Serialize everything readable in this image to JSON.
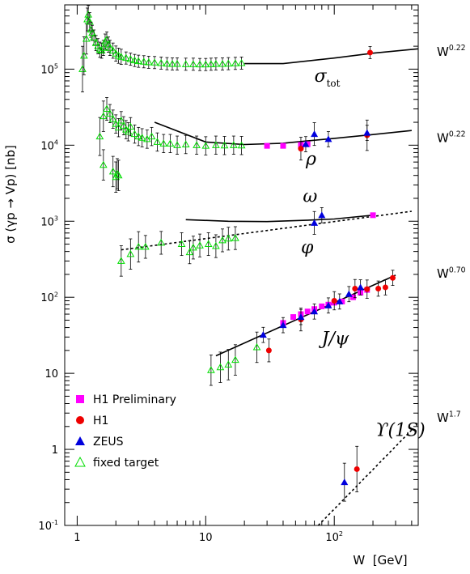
{
  "chart_data": {
    "type": "scatter",
    "title": "",
    "ylabel": "σ (γp → Vp) [nb]",
    "xlabel": "W  [GeV]",
    "xscale": "log",
    "yscale": "log",
    "xlim": [
      0.8,
      450
    ],
    "ylim": [
      0.1,
      700000
    ],
    "grid": false,
    "legend_position": "bottom-left",
    "xticks": [
      {
        "value": 1,
        "label": "1"
      },
      {
        "value": 10,
        "label": "10"
      },
      {
        "value": 100,
        "label": "10",
        "exp": "2"
      }
    ],
    "yticks": [
      {
        "value": 0.1,
        "label": "10",
        "exp": "-1"
      },
      {
        "value": 1,
        "label": "1"
      },
      {
        "value": 10,
        "label": "10"
      },
      {
        "value": 100,
        "label": "10",
        "exp": "2"
      },
      {
        "value": 1000,
        "label": "10",
        "exp": "3"
      },
      {
        "value": 10000,
        "label": "10",
        "exp": "4"
      },
      {
        "value": 100000,
        "label": "10",
        "exp": "5"
      }
    ],
    "legend": [
      {
        "label": "H1 Preliminary",
        "marker": "square",
        "color": "#ff00ff"
      },
      {
        "label": "H1",
        "marker": "circle",
        "color": "#ee0000"
      },
      {
        "label": "ZEUS",
        "marker": "triangle",
        "color": "#0000dd"
      },
      {
        "label": "fixed target",
        "marker": "open-triangle",
        "color": "#00dd00"
      }
    ],
    "curve_labels": [
      {
        "text": "σ",
        "sub": "tot",
        "x": 70,
        "y": 68000
      },
      {
        "text": "ρ",
        "x": 60,
        "y": 5500
      },
      {
        "text": "ω",
        "x": 57,
        "y": 1800
      },
      {
        "text": "φ",
        "x": 55,
        "y": 380
      },
      {
        "text": "J/ψ",
        "x": 80,
        "y": 24
      },
      {
        "text": "ϒ(1S)",
        "x": 210,
        "y": 1.5
      }
    ],
    "power_labels": [
      {
        "text": "W",
        "exp": "0.22",
        "y": 150000
      },
      {
        "text": "W",
        "exp": "0.22",
        "y": 11000
      },
      {
        "text": "W",
        "exp": "0.70",
        "y": 180
      },
      {
        "text": "W",
        "exp": "1.7",
        "y": 2.3
      }
    ],
    "fits": [
      {
        "name": "sigma_tot",
        "style": "solid",
        "points": [
          [
            20,
            118000
          ],
          [
            40,
            118000
          ],
          [
            100,
            140000
          ],
          [
            200,
            162000
          ],
          [
            450,
            185000
          ]
        ]
      },
      {
        "name": "rho",
        "style": "solid",
        "points": [
          [
            4,
            20000
          ],
          [
            10,
            11000
          ],
          [
            20,
            10200
          ],
          [
            40,
            10600
          ],
          [
            100,
            12300
          ],
          [
            200,
            13800
          ],
          [
            400,
            15600
          ]
        ]
      },
      {
        "name": "omega",
        "style": "solid",
        "points": [
          [
            7,
            1050
          ],
          [
            15,
            1000
          ],
          [
            30,
            990
          ],
          [
            60,
            1030
          ],
          [
            100,
            1070
          ],
          [
            200,
            1200
          ]
        ]
      },
      {
        "name": "phi",
        "style": "dotted",
        "points": [
          [
            2.2,
            420
          ],
          [
            400,
            1350
          ]
        ]
      },
      {
        "name": "jpsi",
        "style": "solid",
        "points": [
          [
            12,
            17
          ],
          [
            300,
            195
          ]
        ]
      },
      {
        "name": "upsilon",
        "style": "dotted",
        "points": [
          [
            75,
            0.1
          ],
          [
            400,
            1.8
          ]
        ]
      }
    ],
    "series": [
      {
        "name": "H1 Preliminary",
        "marker": "square",
        "color": "#ff00ff",
        "points": [
          [
            30,
            9800,
            0
          ],
          [
            40,
            9800,
            0
          ],
          [
            55,
            10100,
            0
          ],
          [
            62,
            10300,
            0
          ],
          [
            200,
            1200,
            0
          ],
          [
            40,
            46,
            0
          ],
          [
            48,
            55,
            0
          ],
          [
            55,
            60,
            0
          ],
          [
            62,
            65,
            0
          ],
          [
            70,
            70,
            0
          ],
          [
            80,
            76,
            0
          ],
          [
            90,
            80,
            0
          ],
          [
            100,
            85,
            0
          ],
          [
            115,
            88,
            0
          ],
          [
            140,
            100,
            0
          ],
          [
            160,
            115,
            0
          ],
          [
            180,
            125,
            0
          ]
        ]
      },
      {
        "name": "H1",
        "marker": "circle",
        "color": "#ee0000",
        "points": [
          [
            190,
            165000,
            0.08
          ],
          [
            55,
            9000,
            0.15
          ],
          [
            180,
            13500,
            0.2
          ],
          [
            31,
            20,
            0.15
          ],
          [
            55,
            51,
            0.15
          ],
          [
            100,
            90,
            0.12
          ],
          [
            145,
            130,
            0.12
          ],
          [
            180,
            128,
            0.12
          ],
          [
            220,
            130,
            0.1
          ],
          [
            250,
            135,
            0.1
          ],
          [
            285,
            180,
            0.1
          ],
          [
            150,
            0.55,
            0.3
          ]
        ]
      },
      {
        "name": "ZEUS",
        "marker": "triangle",
        "color": "#0000dd",
        "points": [
          [
            60,
            10300,
            0.1
          ],
          [
            70,
            14000,
            0.15
          ],
          [
            90,
            12000,
            0.1
          ],
          [
            180,
            14500,
            0.1
          ],
          [
            70,
            950,
            0.15
          ],
          [
            80,
            1200,
            0.1
          ],
          [
            28,
            32,
            0.1
          ],
          [
            40,
            43,
            0.1
          ],
          [
            55,
            55,
            0.1
          ],
          [
            70,
            65,
            0.1
          ],
          [
            90,
            78,
            0.1
          ],
          [
            110,
            88,
            0.1
          ],
          [
            130,
            110,
            0.1
          ],
          [
            160,
            135,
            0.1
          ],
          [
            120,
            0.37,
            0.25
          ]
        ]
      },
      {
        "name": "fixed target",
        "marker": "open-triangle",
        "color": "#00dd00",
        "points": [
          [
            1.1,
            100000,
            0.3
          ],
          [
            1.13,
            150000,
            0.25
          ],
          [
            1.18,
            250000,
            0.2
          ],
          [
            1.2,
            450000,
            0.15
          ],
          [
            1.22,
            520000,
            0.12
          ],
          [
            1.25,
            420000,
            0.12
          ],
          [
            1.28,
            330000,
            0.1
          ],
          [
            1.31,
            300000,
            0.1
          ],
          [
            1.35,
            260000,
            0.1
          ],
          [
            1.4,
            220000,
            0.1
          ],
          [
            1.45,
            200000,
            0.1
          ],
          [
            1.5,
            180000,
            0.1
          ],
          [
            1.55,
            175000,
            0.1
          ],
          [
            1.6,
            190000,
            0.1
          ],
          [
            1.65,
            230000,
            0.1
          ],
          [
            1.7,
            245000,
            0.1
          ],
          [
            1.75,
            210000,
            0.1
          ],
          [
            1.8,
            190000,
            0.1
          ],
          [
            1.9,
            175000,
            0.1
          ],
          [
            2.0,
            160000,
            0.1
          ],
          [
            2.1,
            150000,
            0.1
          ],
          [
            2.2,
            145000,
            0.1
          ],
          [
            2.4,
            140000,
            0.08
          ],
          [
            2.6,
            135000,
            0.08
          ],
          [
            2.8,
            130000,
            0.08
          ],
          [
            3.0,
            127000,
            0.08
          ],
          [
            3.3,
            125000,
            0.08
          ],
          [
            3.6,
            123000,
            0.08
          ],
          [
            4.0,
            122000,
            0.08
          ],
          [
            4.5,
            120000,
            0.08
          ],
          [
            5.0,
            118000,
            0.08
          ],
          [
            5.5,
            117000,
            0.08
          ],
          [
            6.0,
            117000,
            0.08
          ],
          [
            7.0,
            116000,
            0.08
          ],
          [
            8.0,
            116000,
            0.08
          ],
          [
            9.0,
            115000,
            0.08
          ],
          [
            10.0,
            115000,
            0.08
          ],
          [
            11.0,
            116000,
            0.08
          ],
          [
            12.0,
            117000,
            0.08
          ],
          [
            13.5,
            117000,
            0.08
          ],
          [
            15.0,
            118000,
            0.08
          ],
          [
            17.0,
            119000,
            0.08
          ],
          [
            19.0,
            120000,
            0.08
          ],
          [
            1.5,
            13000,
            0.25
          ],
          [
            1.6,
            24000,
            0.2
          ],
          [
            1.7,
            30000,
            0.15
          ],
          [
            1.8,
            26000,
            0.12
          ],
          [
            1.9,
            22000,
            0.12
          ],
          [
            2.0,
            19000,
            0.12
          ],
          [
            2.1,
            17000,
            0.12
          ],
          [
            2.2,
            21000,
            0.12
          ],
          [
            2.3,
            18000,
            0.12
          ],
          [
            2.4,
            16000,
            0.12
          ],
          [
            2.5,
            15000,
            0.12
          ],
          [
            2.6,
            17500,
            0.12
          ],
          [
            2.8,
            14000,
            0.12
          ],
          [
            3.0,
            13000,
            0.12
          ],
          [
            3.2,
            12500,
            0.12
          ],
          [
            3.5,
            12000,
            0.12
          ],
          [
            3.8,
            13000,
            0.12
          ],
          [
            4.2,
            11000,
            0.12
          ],
          [
            4.7,
            10500,
            0.12
          ],
          [
            5.3,
            10500,
            0.12
          ],
          [
            6.0,
            10000,
            0.12
          ],
          [
            7.0,
            10200,
            0.12
          ],
          [
            8.5,
            10000,
            0.12
          ],
          [
            10.0,
            9800,
            0.12
          ],
          [
            12.0,
            10000,
            0.12
          ],
          [
            14.0,
            9900,
            0.12
          ],
          [
            16.5,
            10000,
            0.12
          ],
          [
            19.0,
            9900,
            0.12
          ],
          [
            1.6,
            5500,
            0.2
          ],
          [
            1.9,
            4500,
            0.2
          ],
          [
            2.0,
            3800,
            0.2
          ],
          [
            2.05,
            4200,
            0.2
          ],
          [
            2.1,
            4000,
            0.2
          ],
          [
            2.2,
            300,
            0.2
          ],
          [
            2.6,
            370,
            0.2
          ],
          [
            3.0,
            460,
            0.2
          ],
          [
            3.4,
            460,
            0.15
          ],
          [
            4.5,
            520,
            0.15
          ],
          [
            6.5,
            500,
            0.15
          ],
          [
            7.5,
            390,
            0.15
          ],
          [
            8.0,
            450,
            0.15
          ],
          [
            9.0,
            480,
            0.15
          ],
          [
            10.5,
            500,
            0.15
          ],
          [
            12.0,
            470,
            0.15
          ],
          [
            13.5,
            560,
            0.15
          ],
          [
            15.0,
            590,
            0.15
          ],
          [
            17.0,
            600,
            0.15
          ],
          [
            11,
            11,
            0.2
          ],
          [
            13,
            12,
            0.2
          ],
          [
            15,
            13,
            0.2
          ],
          [
            17,
            15,
            0.2
          ],
          [
            25,
            22,
            0.2
          ]
        ]
      }
    ]
  }
}
